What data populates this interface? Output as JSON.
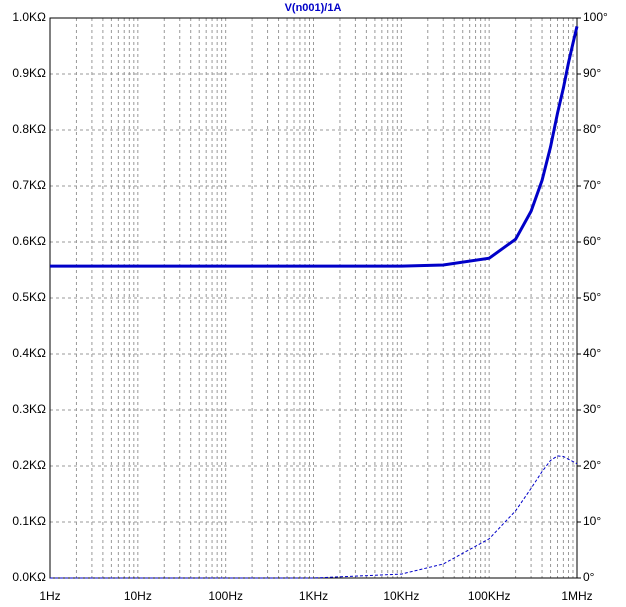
{
  "chart_data": {
    "type": "line",
    "title": "V(n001)/1A",
    "x": [
      1,
      10,
      100,
      1000,
      10000,
      30000,
      100000,
      200000,
      300000,
      400000,
      500000,
      600000,
      700000,
      800000,
      900000,
      1000000
    ],
    "series": [
      {
        "color": "#0000c8",
        "line_style": "solid",
        "axis": "y",
        "values": [
          0.557,
          0.557,
          0.557,
          0.557,
          0.557,
          0.559,
          0.571,
          0.605,
          0.655,
          0.71,
          0.77,
          0.83,
          0.875,
          0.92,
          0.955,
          0.985
        ]
      },
      {
        "color": "#0000c8",
        "line_style": "dashed",
        "axis": "y2",
        "values": [
          0,
          0,
          0,
          0,
          0.7,
          2.5,
          7,
          12,
          16,
          19,
          21,
          21.8,
          21.7,
          21.2,
          20.8,
          20.4
        ]
      }
    ],
    "xscale": "log",
    "xlim": [
      1,
      1000000
    ],
    "xticks": [
      {
        "value": 1,
        "label": "1Hz"
      },
      {
        "value": 10,
        "label": "10Hz"
      },
      {
        "value": 100,
        "label": "100Hz"
      },
      {
        "value": 1000,
        "label": "1KHz"
      },
      {
        "value": 10000,
        "label": "10KHz"
      },
      {
        "value": 100000,
        "label": "100KHz"
      },
      {
        "value": 1000000,
        "label": "1MHz"
      }
    ],
    "ylim": [
      0,
      1
    ],
    "yticks": [
      {
        "value": 0,
        "label": "0.0KΩ"
      },
      {
        "value": 0.1,
        "label": "0.1KΩ"
      },
      {
        "value": 0.2,
        "label": "0.2KΩ"
      },
      {
        "value": 0.3,
        "label": "0.3KΩ"
      },
      {
        "value": 0.4,
        "label": "0.4KΩ"
      },
      {
        "value": 0.5,
        "label": "0.5KΩ"
      },
      {
        "value": 0.6,
        "label": "0.6KΩ"
      },
      {
        "value": 0.7,
        "label": "0.7KΩ"
      },
      {
        "value": 0.8,
        "label": "0.8KΩ"
      },
      {
        "value": 0.9,
        "label": "0.9KΩ"
      },
      {
        "value": 1,
        "label": "1.0KΩ"
      }
    ],
    "y2lim": [
      0,
      100
    ],
    "y2ticks": [
      {
        "value": 0,
        "label": "0°"
      },
      {
        "value": 10,
        "label": "10°"
      },
      {
        "value": 20,
        "label": "20°"
      },
      {
        "value": 30,
        "label": "30°"
      },
      {
        "value": 40,
        "label": "40°"
      },
      {
        "value": 50,
        "label": "50°"
      },
      {
        "value": 60,
        "label": "60°"
      },
      {
        "value": 70,
        "label": "70°"
      },
      {
        "value": 80,
        "label": "80°"
      },
      {
        "value": 90,
        "label": "90°"
      },
      {
        "value": 100,
        "label": "100°"
      }
    ],
    "grid": true,
    "minor_grid": true
  }
}
